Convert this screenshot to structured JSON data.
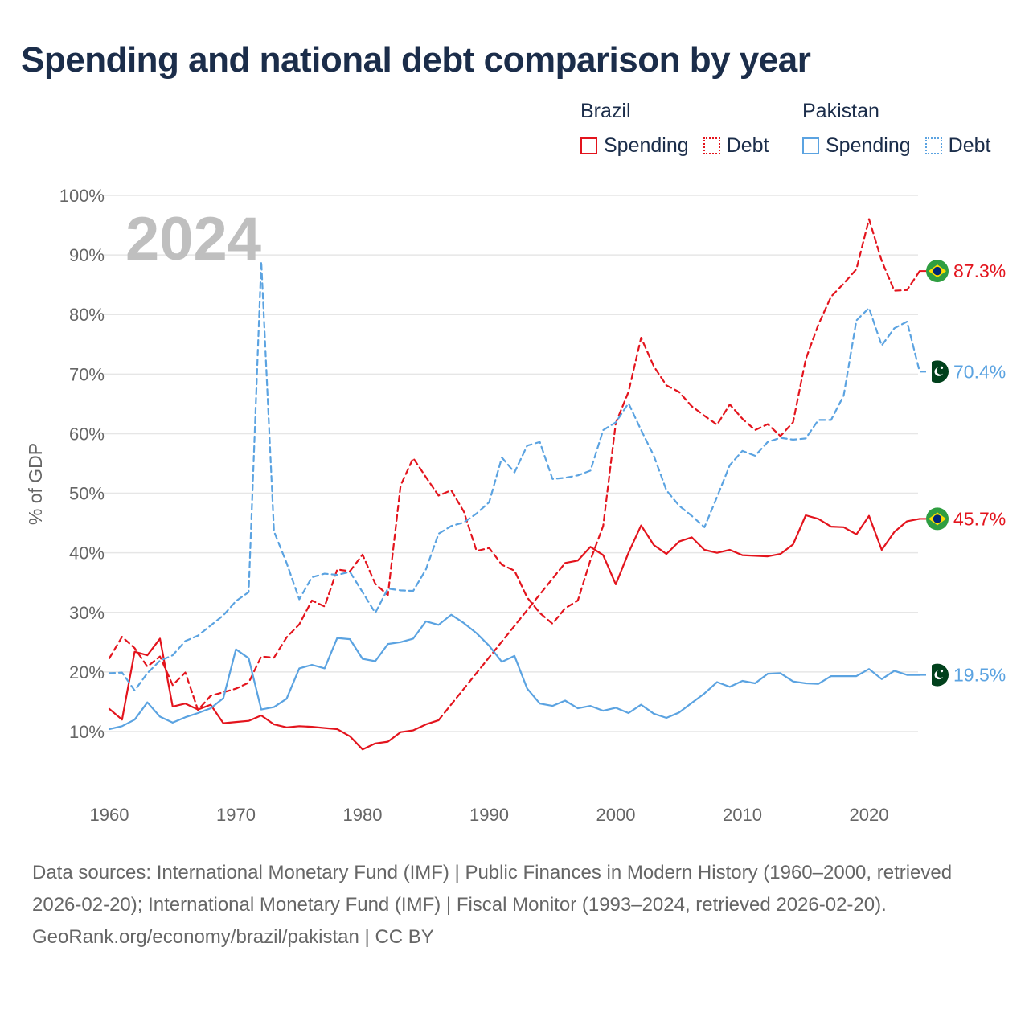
{
  "title": "Spending and national debt comparison by year",
  "legend": {
    "groups": [
      {
        "name": "Brazil",
        "color": "#e3141d",
        "items": [
          "Spending",
          "Debt"
        ]
      },
      {
        "name": "Pakistan",
        "color": "#5ba3e1",
        "items": [
          "Spending",
          "Debt"
        ]
      }
    ]
  },
  "colors": {
    "brazil": "#e3141d",
    "pakistan": "#5ba3e1",
    "grid": "#e6e6e6",
    "year_watermark": "#bfbfbf"
  },
  "year_watermark": "2024",
  "footer": {
    "sources": "Data sources: International Monetary Fund (IMF) | Public Finances in Modern History (1960–2000, retrieved 2026-02-20); International Monetary Fund (IMF) | Fiscal Monitor (1993–2024, retrieved 2026-02-20).",
    "credit": "GeoRank.org/economy/brazil/pakistan | CC BY"
  },
  "chart_data": {
    "type": "line",
    "title": "Spending and national debt comparison by year",
    "xlabel": "",
    "ylabel": "% of GDP",
    "xlim": [
      1960,
      2024
    ],
    "ylim": [
      0,
      100
    ],
    "x_ticks": [
      1960,
      1970,
      1980,
      1990,
      2000,
      2010,
      2020
    ],
    "y_ticks": [
      10,
      20,
      30,
      40,
      50,
      60,
      70,
      80,
      90,
      100
    ],
    "y_tick_labels": [
      "10%",
      "20%",
      "30%",
      "40%",
      "50%",
      "60%",
      "70%",
      "80%",
      "90%",
      "100%"
    ],
    "grid": true,
    "series": [
      {
        "name": "Brazil Spending",
        "country": "Brazil",
        "measure": "Spending",
        "style": "solid",
        "color": "#e3141d",
        "end_label": "45.7%",
        "flag": "brazil",
        "start_year": 1960,
        "values": [
          13.8,
          12.0,
          23.4,
          22.8,
          25.6,
          14.2,
          14.7,
          13.7,
          14.5,
          11.4,
          11.6,
          11.8,
          12.7,
          11.2,
          10.7,
          10.9,
          10.8,
          10.6,
          10.4,
          9.2,
          7.0,
          8.0,
          8.3,
          9.9,
          10.2,
          11.2,
          11.9,
          null,
          null,
          null,
          null,
          null,
          null,
          null,
          null,
          null,
          38.3,
          38.7,
          41.0,
          39.6,
          34.7,
          40.0,
          44.6,
          41.3,
          39.8,
          41.9,
          42.6,
          40.5,
          40.0,
          40.5,
          39.6,
          39.5,
          39.4,
          39.8,
          41.4,
          46.3,
          45.7,
          44.4,
          44.3,
          43.1,
          46.2,
          40.5,
          43.5,
          45.3,
          45.7
        ]
      },
      {
        "name": "Brazil Debt",
        "country": "Brazil",
        "measure": "Debt",
        "style": "dashed",
        "color": "#e3141d",
        "end_label": "87.3%",
        "flag": "brazil",
        "start_year": 1960,
        "values": [
          22.3,
          25.9,
          24.0,
          20.9,
          22.6,
          17.8,
          19.9,
          13.6,
          16.0,
          16.6,
          17.2,
          18.2,
          22.6,
          22.4,
          25.8,
          28.0,
          32.0,
          31.0,
          37.2,
          36.9,
          39.7,
          34.8,
          32.9,
          51.3,
          55.9,
          52.7,
          49.6,
          50.5,
          46.9,
          40.3,
          40.8,
          38.0,
          37.0,
          32.5,
          29.9,
          28.1,
          30.7,
          32.0,
          38.8,
          44.5,
          61.8,
          67.0,
          76.1,
          71.3,
          68.1,
          67.0,
          64.6,
          63.0,
          61.5,
          64.9,
          62.5,
          60.6,
          61.6,
          59.6,
          61.9,
          72.5,
          78.3,
          83.0,
          85.2,
          87.6,
          96.0,
          89.0,
          84.0,
          84.1,
          87.3
        ]
      },
      {
        "name": "Pakistan Spending",
        "country": "Pakistan",
        "measure": "Spending",
        "style": "solid",
        "color": "#5ba3e1",
        "end_label": "19.5%",
        "flag": "pakistan",
        "start_year": 1960,
        "values": [
          10.4,
          10.9,
          12.0,
          14.9,
          12.5,
          11.5,
          12.4,
          13.1,
          13.9,
          15.6,
          23.8,
          22.3,
          13.7,
          14.1,
          15.5,
          20.6,
          21.2,
          20.6,
          25.7,
          25.5,
          22.2,
          21.8,
          24.7,
          25.0,
          25.6,
          28.5,
          27.9,
          29.6,
          28.2,
          26.5,
          24.4,
          21.7,
          22.7,
          17.2,
          14.7,
          14.3,
          15.2,
          13.9,
          14.3,
          13.5,
          14.0,
          13.1,
          14.5,
          13.0,
          12.3,
          13.2,
          14.8,
          16.4,
          18.3,
          17.5,
          18.5,
          18.1,
          19.7,
          19.8,
          18.4,
          18.1,
          18.0,
          19.3,
          19.3,
          19.3,
          20.5,
          18.8,
          20.2,
          19.5,
          19.5
        ]
      },
      {
        "name": "Pakistan Debt",
        "country": "Pakistan",
        "measure": "Debt",
        "style": "dashed",
        "color": "#5ba3e1",
        "end_label": "70.4%",
        "flag": "pakistan",
        "start_year": 1960,
        "values": [
          19.8,
          19.9,
          16.9,
          19.8,
          21.9,
          22.8,
          25.2,
          26.1,
          27.8,
          29.5,
          31.9,
          33.4,
          88.9,
          43.6,
          38.3,
          32.2,
          35.9,
          36.5,
          36.3,
          36.8,
          33.4,
          29.9,
          34.0,
          33.7,
          33.6,
          37.2,
          43.2,
          44.5,
          45.1,
          46.6,
          48.5,
          56.0,
          53.5,
          58.0,
          58.6,
          52.4,
          52.6,
          53.0,
          53.8,
          60.6,
          61.9,
          65.1,
          60.6,
          56.3,
          50.5,
          47.9,
          46.2,
          44.3,
          49.4,
          54.7,
          57.1,
          56.3,
          58.6,
          59.3,
          59.0,
          59.2,
          62.3,
          62.3,
          66.4,
          79.0,
          81.1,
          74.8,
          77.7,
          78.8,
          70.4
        ]
      }
    ]
  }
}
